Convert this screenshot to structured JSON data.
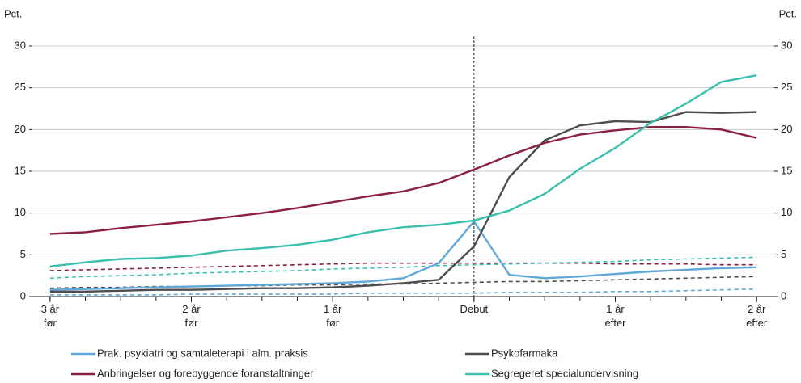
{
  "chart_data": {
    "type": "line",
    "ylabel": "Pct.",
    "y2label": "Pct.",
    "x": [
      -12,
      -11,
      -10,
      -9,
      -8,
      -7,
      -6,
      -5,
      -4,
      -3,
      -2,
      -1,
      0,
      1,
      2,
      3,
      4,
      5,
      6,
      7,
      8
    ],
    "xlim": [
      -12.5,
      8.5
    ],
    "xticks": [
      {
        "value": -12,
        "label": "3 år\nfør"
      },
      {
        "value": -8,
        "label": "2 år\nfør"
      },
      {
        "value": -4,
        "label": "1 år\nfør"
      },
      {
        "value": 0,
        "label": "Debut"
      },
      {
        "value": 4,
        "label": "1 år\nefter"
      },
      {
        "value": 8,
        "label": "2 år\nefter"
      }
    ],
    "ylim": [
      0,
      30
    ],
    "yticks": [
      0,
      5,
      10,
      15,
      20,
      25,
      30
    ],
    "y2lim": [
      0,
      30
    ],
    "y2ticks": [
      0,
      5,
      10,
      15,
      20,
      25,
      30
    ],
    "grid": true,
    "vline": 0,
    "series": [
      {
        "name": "Prak. psykiatri og samtaleterapi i alm. praksis",
        "color": "#5fa8d8",
        "values": [
          0.8,
          0.9,
          1.0,
          1.1,
          1.2,
          1.3,
          1.4,
          1.5,
          1.6,
          1.8,
          2.2,
          4.0,
          9.0,
          2.6,
          2.2,
          2.4,
          2.7,
          3.0,
          3.2,
          3.4,
          3.5
        ]
      },
      {
        "name": "Psykofarmaka",
        "color": "#4d4d4d",
        "values": [
          0.6,
          0.6,
          0.7,
          0.8,
          0.8,
          0.9,
          1.0,
          1.0,
          1.1,
          1.3,
          1.6,
          2.0,
          6.0,
          14.3,
          18.7,
          20.5,
          21.0,
          20.9,
          22.1,
          22.0,
          22.1
        ]
      },
      {
        "name": "Anbringelser og forebyggende foranstaltninger",
        "color": "#8b1f41",
        "values": [
          7.5,
          7.7,
          8.2,
          8.6,
          9.0,
          9.5,
          10.0,
          10.6,
          11.3,
          12.0,
          12.6,
          13.6,
          15.2,
          16.9,
          18.4,
          19.4,
          19.9,
          20.3,
          20.3,
          20.0,
          19.0
        ]
      },
      {
        "name": "Segregeret specialundervisning",
        "color": "#3bbfad",
        "values": [
          3.6,
          4.1,
          4.5,
          4.6,
          4.9,
          5.5,
          5.8,
          6.2,
          6.8,
          7.7,
          8.3,
          8.6,
          9.1,
          10.3,
          12.3,
          15.3,
          17.8,
          20.8,
          23.1,
          25.7,
          26.5
        ]
      },
      {
        "color": "#5fa8d8",
        "dash": true,
        "values": [
          0.2,
          0.2,
          0.2,
          0.2,
          0.3,
          0.3,
          0.3,
          0.3,
          0.3,
          0.4,
          0.4,
          0.4,
          0.4,
          0.5,
          0.5,
          0.5,
          0.6,
          0.6,
          0.7,
          0.8,
          0.9
        ]
      },
      {
        "color": "#4d4d4d",
        "dash": true,
        "values": [
          1.0,
          1.1,
          1.1,
          1.2,
          1.2,
          1.3,
          1.3,
          1.4,
          1.4,
          1.5,
          1.5,
          1.6,
          1.7,
          1.8,
          1.8,
          1.9,
          2.0,
          2.1,
          2.2,
          2.3,
          2.4
        ]
      },
      {
        "color": "#8b1f41",
        "dash": true,
        "values": [
          3.1,
          3.2,
          3.3,
          3.4,
          3.5,
          3.6,
          3.7,
          3.8,
          3.9,
          4.0,
          4.0,
          4.0,
          4.0,
          4.0,
          4.0,
          4.0,
          3.9,
          3.9,
          3.9,
          3.8,
          3.8
        ]
      },
      {
        "color": "#3bbfad",
        "dash": true,
        "values": [
          2.2,
          2.4,
          2.5,
          2.6,
          2.8,
          2.9,
          3.0,
          3.1,
          3.3,
          3.4,
          3.5,
          3.7,
          3.8,
          3.9,
          4.0,
          4.1,
          4.2,
          4.4,
          4.5,
          4.6,
          4.7
        ]
      }
    ]
  }
}
